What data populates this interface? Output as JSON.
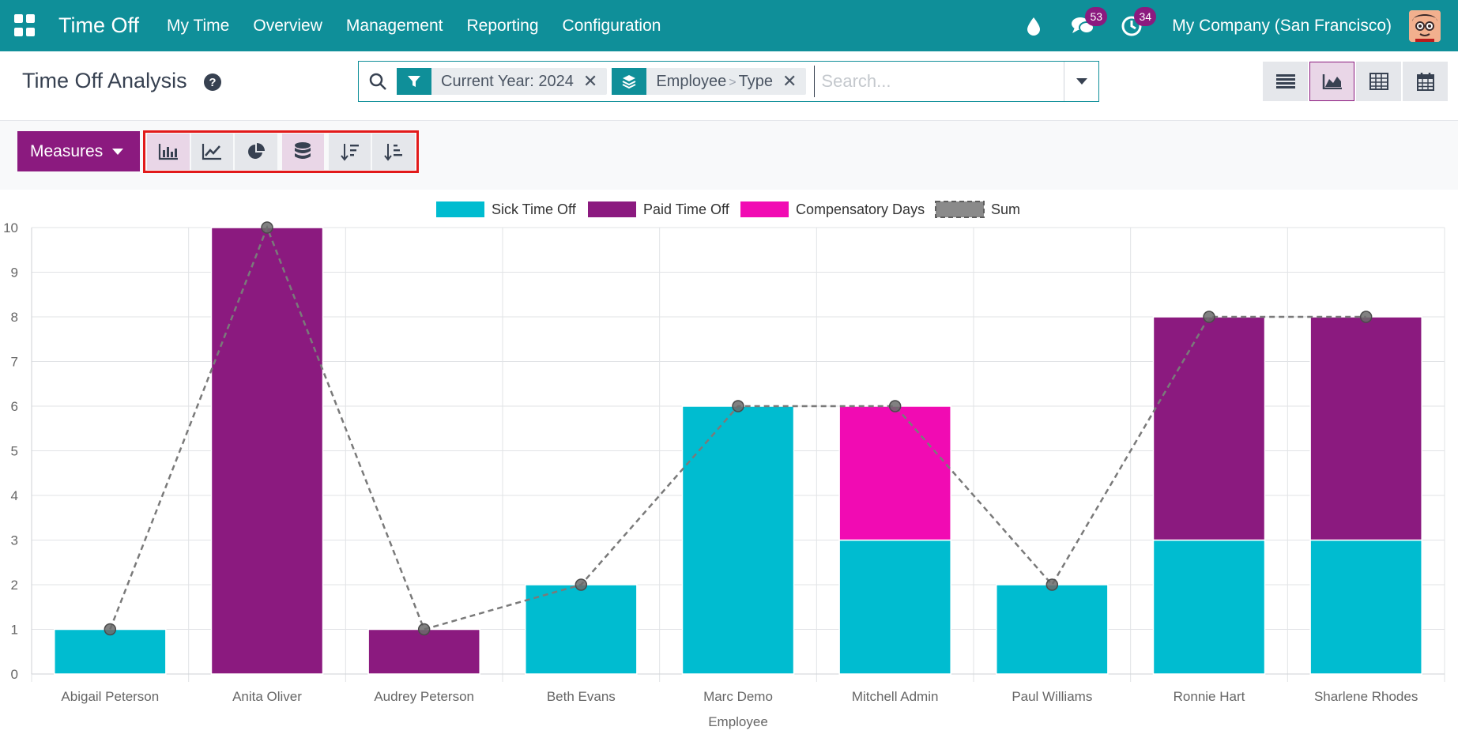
{
  "navbar": {
    "app_title": "Time Off",
    "menu": [
      "My Time",
      "Overview",
      "Management",
      "Reporting",
      "Configuration"
    ],
    "messages_count": "53",
    "activities_count": "34",
    "company": "My Company (San Francisco)"
  },
  "control": {
    "title": "Time Off Analysis",
    "facets": {
      "filter": "Current Year: 2024",
      "group_first": "Employee",
      "group_sep": ">",
      "group_second": "Type"
    },
    "search_placeholder": "Search..."
  },
  "toolbar": {
    "measures_label": "Measures"
  },
  "chart_data": {
    "type": "bar",
    "stacked": true,
    "categories": [
      "Abigail Peterson",
      "Anita Oliver",
      "Audrey Peterson",
      "Beth Evans",
      "Marc Demo",
      "Mitchell Admin",
      "Paul Williams",
      "Ronnie Hart",
      "Sharlene Rhodes"
    ],
    "series": [
      {
        "name": "Sick Time Off",
        "color": "#00bcd0",
        "values": [
          1,
          0,
          0,
          2,
          6,
          3,
          2,
          3,
          3
        ]
      },
      {
        "name": "Paid Time Off",
        "color": "#8b1a7f",
        "values": [
          0,
          10,
          1,
          0,
          0,
          0,
          0,
          5,
          5
        ]
      },
      {
        "name": "Compensatory Days",
        "color": "#f10bb3",
        "values": [
          0,
          0,
          0,
          0,
          0,
          3,
          0,
          0,
          0
        ]
      }
    ],
    "sum_line": {
      "name": "Sum",
      "values": [
        1,
        10,
        1,
        2,
        6,
        6,
        2,
        8,
        8
      ]
    },
    "xlabel": "Employee",
    "ylabel": "",
    "ylim": [
      0,
      10
    ],
    "yticks": [
      "0",
      "1",
      "2",
      "3",
      "4",
      "5",
      "6",
      "7",
      "8",
      "9",
      "10"
    ],
    "legend": "top-center",
    "grid": true
  }
}
